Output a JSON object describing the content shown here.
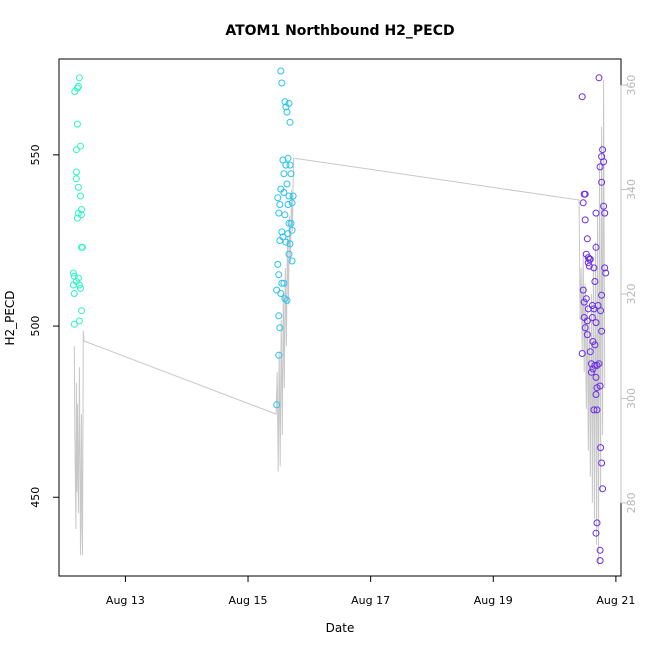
{
  "chart_data": {
    "type": "scatter",
    "title": "ATOM1 Northbound H2_PECD",
    "xlabel": "Date",
    "ylabel": "H2_PECD",
    "x_axis": {
      "type": "date",
      "range": [
        "2023-08-11T22:00",
        "2023-08-21T02:00"
      ],
      "ticks": [
        "2023-08-13",
        "2023-08-15",
        "2023-08-17",
        "2023-08-19",
        "2023-08-21"
      ],
      "tick_labels": [
        "Aug 13",
        "Aug 15",
        "Aug 17",
        "Aug 19",
        "Aug 21"
      ]
    },
    "y_left": {
      "range": [
        427,
        578
      ],
      "ticks": [
        450,
        500,
        550
      ],
      "tick_labels": [
        "450",
        "500",
        "550"
      ]
    },
    "y_right": {
      "range": [
        266,
        365
      ],
      "ticks": [
        280,
        300,
        320,
        340,
        360
      ],
      "tick_labels": [
        "280",
        "300",
        "320",
        "340",
        "360"
      ],
      "color": "#c0c0c0"
    },
    "colors": {
      "group1": "#2ef5c4",
      "group2": "#29c4f0",
      "group3": "#6b2de8",
      "line": "#c8c8c8"
    },
    "points": [
      {
        "x": "2023-08-12T04:12",
        "y": 568.5,
        "g": 1
      },
      {
        "x": "2023-08-12T05:12",
        "y": 569.5,
        "g": 1
      },
      {
        "x": "2023-08-12T05:36",
        "y": 570,
        "g": 1
      },
      {
        "x": "2023-08-12T06:00",
        "y": 572.5,
        "g": 1
      },
      {
        "x": "2023-08-12T05:12",
        "y": 559,
        "g": 1
      },
      {
        "x": "2023-08-12T04:48",
        "y": 551.5,
        "g": 1
      },
      {
        "x": "2023-08-12T06:24",
        "y": 552.5,
        "g": 1
      },
      {
        "x": "2023-08-12T04:48",
        "y": 545,
        "g": 1
      },
      {
        "x": "2023-08-12T04:48",
        "y": 543,
        "g": 1
      },
      {
        "x": "2023-08-12T05:36",
        "y": 540.5,
        "g": 1
      },
      {
        "x": "2023-08-12T06:24",
        "y": 538,
        "g": 1
      },
      {
        "x": "2023-08-12T06:48",
        "y": 534,
        "g": 1
      },
      {
        "x": "2023-08-12T05:36",
        "y": 533,
        "g": 1
      },
      {
        "x": "2023-08-12T05:12",
        "y": 531.5,
        "g": 1
      },
      {
        "x": "2023-08-12T06:48",
        "y": 532.5,
        "g": 1
      },
      {
        "x": "2023-08-12T06:48",
        "y": 523,
        "g": 1
      },
      {
        "x": "2023-08-12T07:12",
        "y": 523,
        "g": 1
      },
      {
        "x": "2023-08-12T03:36",
        "y": 515.5,
        "g": 1
      },
      {
        "x": "2023-08-12T04:00",
        "y": 514.5,
        "g": 1
      },
      {
        "x": "2023-08-12T05:36",
        "y": 514,
        "g": 1
      },
      {
        "x": "2023-08-12T04:48",
        "y": 513,
        "g": 1
      },
      {
        "x": "2023-08-12T03:36",
        "y": 512,
        "g": 1
      },
      {
        "x": "2023-08-12T06:00",
        "y": 512,
        "g": 1
      },
      {
        "x": "2023-08-12T04:00",
        "y": 509.5,
        "g": 1
      },
      {
        "x": "2023-08-12T06:24",
        "y": 511,
        "g": 1
      },
      {
        "x": "2023-08-12T06:48",
        "y": 504.5,
        "g": 1
      },
      {
        "x": "2023-08-12T04:00",
        "y": 500.5,
        "g": 1
      },
      {
        "x": "2023-08-12T06:00",
        "y": 501.5,
        "g": 1
      },
      {
        "x": "2023-08-15T12:50",
        "y": 574.5,
        "g": 2
      },
      {
        "x": "2023-08-15T13:14",
        "y": 571,
        "g": 2
      },
      {
        "x": "2023-08-15T14:26",
        "y": 565.5,
        "g": 2
      },
      {
        "x": "2023-08-15T14:50",
        "y": 564,
        "g": 2
      },
      {
        "x": "2023-08-15T16:02",
        "y": 565,
        "g": 2
      },
      {
        "x": "2023-08-15T15:14",
        "y": 562.5,
        "g": 2
      },
      {
        "x": "2023-08-15T16:26",
        "y": 559.5,
        "g": 2
      },
      {
        "x": "2023-08-15T13:38",
        "y": 548.5,
        "g": 2
      },
      {
        "x": "2023-08-15T15:38",
        "y": 549,
        "g": 2
      },
      {
        "x": "2023-08-15T14:50",
        "y": 547,
        "g": 2
      },
      {
        "x": "2023-08-15T16:26",
        "y": 547,
        "g": 2
      },
      {
        "x": "2023-08-15T14:02",
        "y": 544.5,
        "g": 2
      },
      {
        "x": "2023-08-15T16:50",
        "y": 544.5,
        "g": 2
      },
      {
        "x": "2023-08-15T15:14",
        "y": 541.5,
        "g": 2
      },
      {
        "x": "2023-08-15T12:50",
        "y": 540,
        "g": 2
      },
      {
        "x": "2023-08-15T14:02",
        "y": 539,
        "g": 2
      },
      {
        "x": "2023-08-15T11:38",
        "y": 537.5,
        "g": 2
      },
      {
        "x": "2023-08-15T16:02",
        "y": 538,
        "g": 2
      },
      {
        "x": "2023-08-15T17:38",
        "y": 538,
        "g": 2
      },
      {
        "x": "2023-08-15T12:26",
        "y": 535.5,
        "g": 2
      },
      {
        "x": "2023-08-15T15:38",
        "y": 535.5,
        "g": 2
      },
      {
        "x": "2023-08-15T17:14",
        "y": 536,
        "g": 2
      },
      {
        "x": "2023-08-15T12:02",
        "y": 533,
        "g": 2
      },
      {
        "x": "2023-08-15T14:26",
        "y": 532.5,
        "g": 2
      },
      {
        "x": "2023-08-15T16:02",
        "y": 530,
        "g": 2
      },
      {
        "x": "2023-08-15T16:50",
        "y": 530,
        "g": 2
      },
      {
        "x": "2023-08-15T13:14",
        "y": 527.5,
        "g": 2
      },
      {
        "x": "2023-08-15T13:38",
        "y": 526,
        "g": 2
      },
      {
        "x": "2023-08-15T15:38",
        "y": 527,
        "g": 2
      },
      {
        "x": "2023-08-15T17:14",
        "y": 528,
        "g": 2
      },
      {
        "x": "2023-08-15T12:26",
        "y": 525,
        "g": 2
      },
      {
        "x": "2023-08-15T14:50",
        "y": 524.5,
        "g": 2
      },
      {
        "x": "2023-08-15T16:26",
        "y": 524,
        "g": 2
      },
      {
        "x": "2023-08-15T16:02",
        "y": 521,
        "g": 2
      },
      {
        "x": "2023-08-15T17:14",
        "y": 519,
        "g": 2
      },
      {
        "x": "2023-08-15T11:38",
        "y": 518,
        "g": 2
      },
      {
        "x": "2023-08-15T12:02",
        "y": 515,
        "g": 2
      },
      {
        "x": "2023-08-15T13:14",
        "y": 512.5,
        "g": 2
      },
      {
        "x": "2023-08-15T14:02",
        "y": 512.5,
        "g": 2
      },
      {
        "x": "2023-08-15T11:14",
        "y": 510.5,
        "g": 2
      },
      {
        "x": "2023-08-15T12:50",
        "y": 509.5,
        "g": 2
      },
      {
        "x": "2023-08-15T14:26",
        "y": 508,
        "g": 2
      },
      {
        "x": "2023-08-15T15:14",
        "y": 507.5,
        "g": 2
      },
      {
        "x": "2023-08-15T12:02",
        "y": 503,
        "g": 2
      },
      {
        "x": "2023-08-15T12:26",
        "y": 499.5,
        "g": 2
      },
      {
        "x": "2023-08-15T12:02",
        "y": 491.5,
        "g": 2
      },
      {
        "x": "2023-08-15T11:14",
        "y": 477,
        "g": 2
      },
      {
        "x": "2023-08-20T10:48",
        "y": 567,
        "g": 3
      },
      {
        "x": "2023-08-20T17:24",
        "y": 572.5,
        "g": 3
      },
      {
        "x": "2023-08-20T18:48",
        "y": 551.5,
        "g": 3
      },
      {
        "x": "2023-08-20T18:24",
        "y": 549.5,
        "g": 3
      },
      {
        "x": "2023-08-20T19:12",
        "y": 548,
        "g": 3
      },
      {
        "x": "2023-08-20T17:48",
        "y": 546.5,
        "g": 3
      },
      {
        "x": "2023-08-20T18:24",
        "y": 542,
        "g": 3
      },
      {
        "x": "2023-08-20T11:36",
        "y": 538.5,
        "g": 3
      },
      {
        "x": "2023-08-20T12:00",
        "y": 538.5,
        "g": 3
      },
      {
        "x": "2023-08-20T11:12",
        "y": 536,
        "g": 3
      },
      {
        "x": "2023-08-20T19:12",
        "y": 535,
        "g": 3
      },
      {
        "x": "2023-08-20T16:12",
        "y": 533,
        "g": 3
      },
      {
        "x": "2023-08-20T19:36",
        "y": 533,
        "g": 3
      },
      {
        "x": "2023-08-20T12:00",
        "y": 531,
        "g": 3
      },
      {
        "x": "2023-08-20T12:48",
        "y": 525.5,
        "g": 3
      },
      {
        "x": "2023-08-20T16:12",
        "y": 523,
        "g": 3
      },
      {
        "x": "2023-08-20T12:24",
        "y": 521,
        "g": 3
      },
      {
        "x": "2023-08-20T13:12",
        "y": 520,
        "g": 3
      },
      {
        "x": "2023-08-20T13:36",
        "y": 519.5,
        "g": 3
      },
      {
        "x": "2023-08-20T14:00",
        "y": 519.5,
        "g": 3
      },
      {
        "x": "2023-08-20T13:12",
        "y": 518.5,
        "g": 3
      },
      {
        "x": "2023-08-20T13:36",
        "y": 517.5,
        "g": 3
      },
      {
        "x": "2023-08-20T15:24",
        "y": 517,
        "g": 3
      },
      {
        "x": "2023-08-20T19:36",
        "y": 517,
        "g": 3
      },
      {
        "x": "2023-08-20T20:00",
        "y": 515.5,
        "g": 3
      },
      {
        "x": "2023-08-20T15:48",
        "y": 513,
        "g": 3
      },
      {
        "x": "2023-08-20T11:12",
        "y": 510.5,
        "g": 3
      },
      {
        "x": "2023-08-20T18:24",
        "y": 509,
        "g": 3
      },
      {
        "x": "2023-08-20T12:24",
        "y": 508,
        "g": 3
      },
      {
        "x": "2023-08-20T11:36",
        "y": 507,
        "g": 3
      },
      {
        "x": "2023-08-20T14:48",
        "y": 506,
        "g": 3
      },
      {
        "x": "2023-08-20T17:00",
        "y": 506,
        "g": 3
      },
      {
        "x": "2023-08-20T13:12",
        "y": 505,
        "g": 3
      },
      {
        "x": "2023-08-20T15:24",
        "y": 505,
        "g": 3
      },
      {
        "x": "2023-08-20T18:00",
        "y": 504.5,
        "g": 3
      },
      {
        "x": "2023-08-20T11:36",
        "y": 502.5,
        "g": 3
      },
      {
        "x": "2023-08-20T14:48",
        "y": 502.5,
        "g": 3
      },
      {
        "x": "2023-08-20T12:48",
        "y": 501.5,
        "g": 3
      },
      {
        "x": "2023-08-20T16:12",
        "y": 501,
        "g": 3
      },
      {
        "x": "2023-08-20T12:00",
        "y": 499.5,
        "g": 3
      },
      {
        "x": "2023-08-20T18:24",
        "y": 498.5,
        "g": 3
      },
      {
        "x": "2023-08-20T12:48",
        "y": 497.5,
        "g": 3
      },
      {
        "x": "2023-08-20T15:00",
        "y": 495.5,
        "g": 3
      },
      {
        "x": "2023-08-20T15:48",
        "y": 494.5,
        "g": 3
      },
      {
        "x": "2023-08-20T14:00",
        "y": 492.5,
        "g": 3
      },
      {
        "x": "2023-08-20T10:48",
        "y": 492,
        "g": 3
      },
      {
        "x": "2023-08-20T14:24",
        "y": 489,
        "g": 3
      },
      {
        "x": "2023-08-20T17:24",
        "y": 489,
        "g": 3
      },
      {
        "x": "2023-08-20T15:48",
        "y": 488.5,
        "g": 3
      },
      {
        "x": "2023-08-20T16:36",
        "y": 488.5,
        "g": 3
      },
      {
        "x": "2023-08-20T15:00",
        "y": 487.5,
        "g": 3
      },
      {
        "x": "2023-08-20T14:24",
        "y": 486.5,
        "g": 3
      },
      {
        "x": "2023-08-20T16:12",
        "y": 485,
        "g": 3
      },
      {
        "x": "2023-08-20T17:48",
        "y": 482.5,
        "g": 3
      },
      {
        "x": "2023-08-20T16:36",
        "y": 482,
        "g": 3
      },
      {
        "x": "2023-08-20T16:12",
        "y": 480,
        "g": 3
      },
      {
        "x": "2023-08-20T15:24",
        "y": 475.5,
        "g": 3
      },
      {
        "x": "2023-08-20T16:36",
        "y": 475.5,
        "g": 3
      },
      {
        "x": "2023-08-20T18:00",
        "y": 464.5,
        "g": 3
      },
      {
        "x": "2023-08-20T18:24",
        "y": 460,
        "g": 3
      },
      {
        "x": "2023-08-20T18:48",
        "y": 452.5,
        "g": 3
      },
      {
        "x": "2023-08-20T16:36",
        "y": 442.5,
        "g": 3
      },
      {
        "x": "2023-08-20T16:12",
        "y": 439.5,
        "g": 3
      },
      {
        "x": "2023-08-20T17:48",
        "y": 434.5,
        "g": 3
      },
      {
        "x": "2023-08-20T17:48",
        "y": 431.5,
        "g": 3
      }
    ],
    "line": [
      {
        "x": "2023-08-12T04:00",
        "y": 310
      },
      {
        "x": "2023-08-12T04:12",
        "y": 294
      },
      {
        "x": "2023-08-12T04:36",
        "y": 275
      },
      {
        "x": "2023-08-12T04:48",
        "y": 303
      },
      {
        "x": "2023-08-12T05:00",
        "y": 282
      },
      {
        "x": "2023-08-12T05:12",
        "y": 299
      },
      {
        "x": "2023-08-12T05:36",
        "y": 278
      },
      {
        "x": "2023-08-12T06:00",
        "y": 306
      },
      {
        "x": "2023-08-12T06:12",
        "y": 289
      },
      {
        "x": "2023-08-12T06:24",
        "y": 270
      },
      {
        "x": "2023-08-12T06:48",
        "y": 297
      },
      {
        "x": "2023-08-12T07:00",
        "y": 275
      },
      {
        "x": "2023-08-12T07:12",
        "y": 270
      },
      {
        "x": "2023-08-12T07:30",
        "y": 313
      },
      {
        "x": "2023-08-12T07:48",
        "y": 311
      },
      {
        "x": "2023-08-15T11:00",
        "y": 297
      },
      {
        "x": "2023-08-15T11:24",
        "y": 305
      },
      {
        "x": "2023-08-15T11:48",
        "y": 286
      },
      {
        "x": "2023-08-15T12:12",
        "y": 309
      },
      {
        "x": "2023-08-15T12:36",
        "y": 287
      },
      {
        "x": "2023-08-15T13:00",
        "y": 315
      },
      {
        "x": "2023-08-15T13:24",
        "y": 293
      },
      {
        "x": "2023-08-15T13:48",
        "y": 320
      },
      {
        "x": "2023-08-15T14:12",
        "y": 302
      },
      {
        "x": "2023-08-15T14:36",
        "y": 325
      },
      {
        "x": "2023-08-15T15:00",
        "y": 310
      },
      {
        "x": "2023-08-15T15:24",
        "y": 331
      },
      {
        "x": "2023-08-15T15:48",
        "y": 318
      },
      {
        "x": "2023-08-15T16:12",
        "y": 335
      },
      {
        "x": "2023-08-15T16:36",
        "y": 326
      },
      {
        "x": "2023-08-15T17:00",
        "y": 340
      },
      {
        "x": "2023-08-15T17:24",
        "y": 332
      },
      {
        "x": "2023-08-15T17:48",
        "y": 346
      },
      {
        "x": "2023-08-15T18:12",
        "y": 346
      },
      {
        "x": "2023-08-20T09:36",
        "y": 338
      },
      {
        "x": "2023-08-20T10:00",
        "y": 315
      },
      {
        "x": "2023-08-20T10:24",
        "y": 325
      },
      {
        "x": "2023-08-20T10:48",
        "y": 309
      },
      {
        "x": "2023-08-20T11:12",
        "y": 328
      },
      {
        "x": "2023-08-20T11:36",
        "y": 305
      },
      {
        "x": "2023-08-20T12:00",
        "y": 322
      },
      {
        "x": "2023-08-20T12:24",
        "y": 298
      },
      {
        "x": "2023-08-20T12:48",
        "y": 318
      },
      {
        "x": "2023-08-20T13:12",
        "y": 290
      },
      {
        "x": "2023-08-20T13:36",
        "y": 315
      },
      {
        "x": "2023-08-20T14:00",
        "y": 285
      },
      {
        "x": "2023-08-20T14:24",
        "y": 320
      },
      {
        "x": "2023-08-20T14:48",
        "y": 280
      },
      {
        "x": "2023-08-20T15:12",
        "y": 325
      },
      {
        "x": "2023-08-20T15:36",
        "y": 277
      },
      {
        "x": "2023-08-20T16:00",
        "y": 330
      },
      {
        "x": "2023-08-20T16:24",
        "y": 272
      },
      {
        "x": "2023-08-20T16:48",
        "y": 335
      },
      {
        "x": "2023-08-20T17:12",
        "y": 268
      },
      {
        "x": "2023-08-20T17:36",
        "y": 345
      },
      {
        "x": "2023-08-20T18:00",
        "y": 282
      },
      {
        "x": "2023-08-20T18:24",
        "y": 352
      },
      {
        "x": "2023-08-20T18:48",
        "y": 293
      },
      {
        "x": "2023-08-20T19:12",
        "y": 361
      },
      {
        "x": "2023-08-20T19:36",
        "y": 302
      }
    ]
  }
}
